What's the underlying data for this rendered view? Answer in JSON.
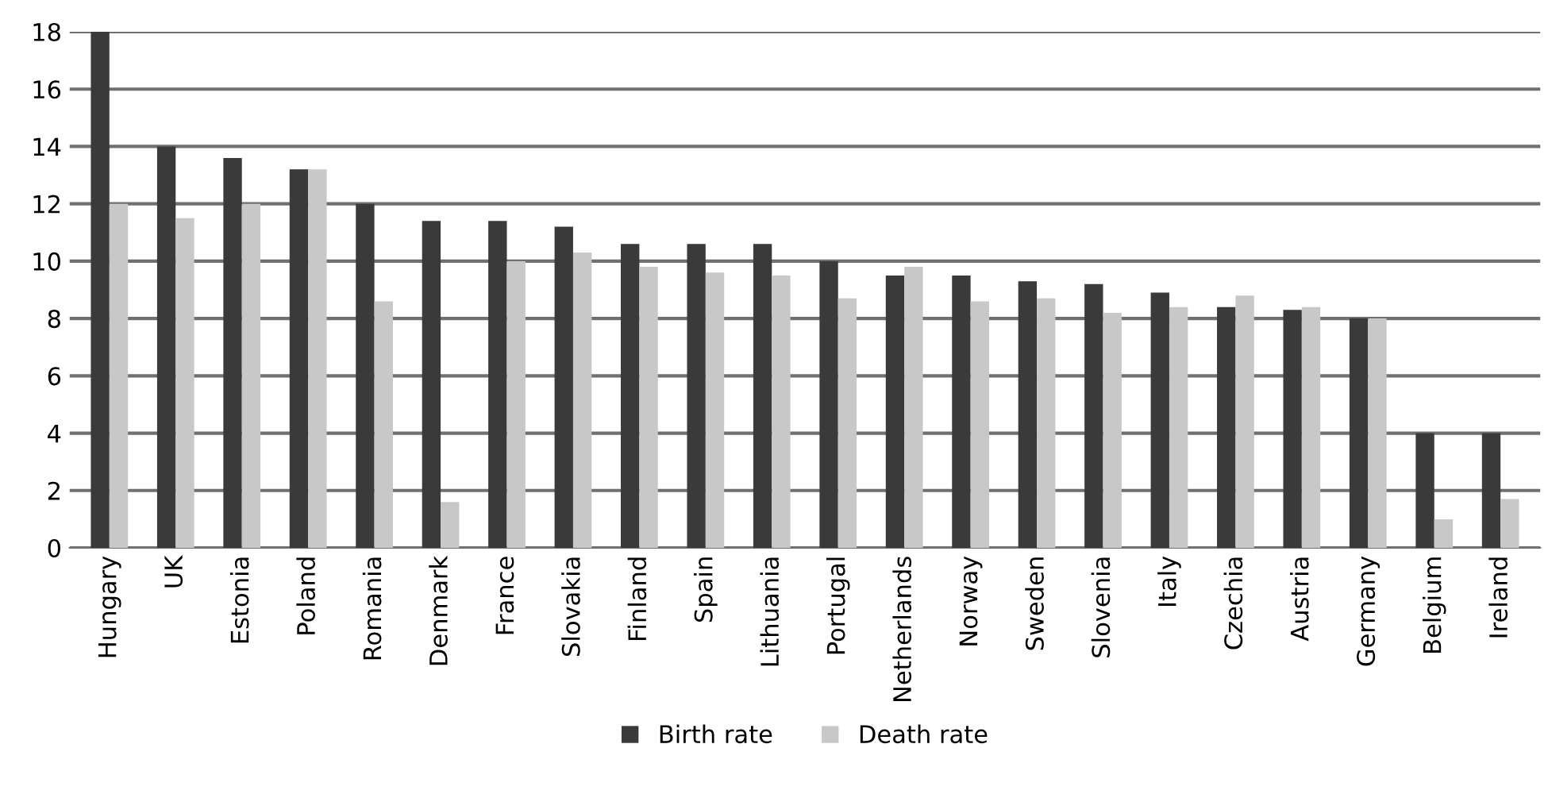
{
  "chart_data": {
    "type": "bar",
    "categories": [
      "Hungary",
      "UK",
      "Estonia",
      "Poland",
      "Romania",
      "Denmark",
      "France",
      "Slovakia",
      "Finland",
      "Spain",
      "Lithuania",
      "Portugal",
      "Netherlands",
      "Norway",
      "Sweden",
      "Slovenia",
      "Italy",
      "Czechia",
      "Austria",
      "Germany",
      "Belgium",
      "Ireland"
    ],
    "series": [
      {
        "name": "Birth rate",
        "color": "#3a3a3a",
        "values": [
          18,
          14,
          13.6,
          13.2,
          12,
          11.4,
          11.4,
          11.2,
          10.6,
          10.6,
          10.6,
          10,
          9.5,
          9.5,
          9.3,
          9.2,
          8.9,
          8.4,
          8.3,
          8,
          4,
          4
        ]
      },
      {
        "name": "Death rate",
        "color": "#c8c8c8",
        "values": [
          12,
          11.5,
          12,
          13.2,
          8.6,
          1.6,
          10,
          10.3,
          9.8,
          9.6,
          9.5,
          8.7,
          9.8,
          8.6,
          8.7,
          8.2,
          8.4,
          8.8,
          8.4,
          8,
          1,
          1.7
        ]
      }
    ],
    "ylim": [
      0,
      18
    ],
    "yticks": [
      0,
      2,
      4,
      6,
      8,
      10,
      12,
      14,
      16,
      18
    ],
    "grid": "y",
    "legend": "bottom"
  }
}
